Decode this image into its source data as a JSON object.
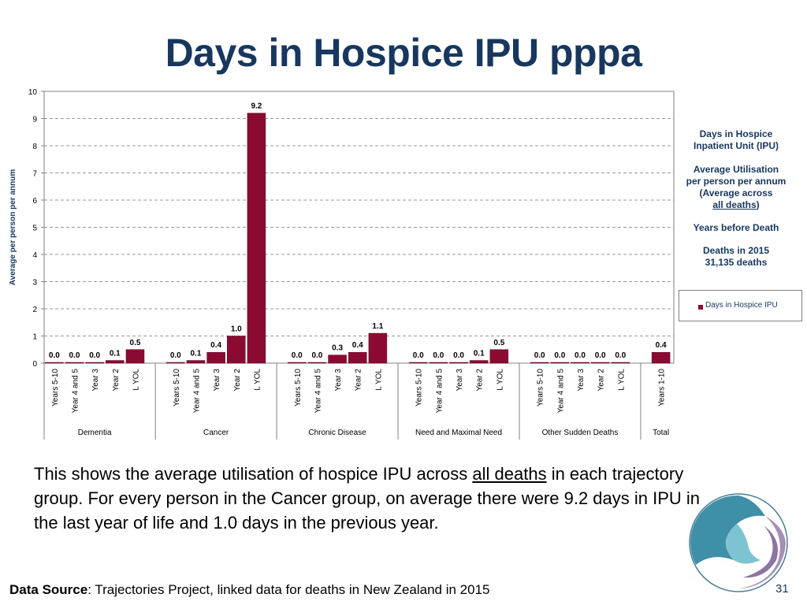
{
  "slide": {
    "title": "Days in Hospice IPU pppa",
    "description_pre": "This shows the average utilisation of hospice IPU across ",
    "description_underline": "all deaths",
    "description_post": " in each trajectory group. For every person in the Cancer group, on average there were 9.2 days in IPU in the last year of life and 1.0 days in the previous year.",
    "footer_label": "Data Source",
    "footer_text": ": Trajectories Project, linked data for deaths in New Zealand in 2015",
    "page_number": "31"
  },
  "side_notes": {
    "heading_line1": "Days in Hospice",
    "heading_line2": "Inpatient Unit (IPU)",
    "avg_line1": "Average Utilisation",
    "avg_line2": "per person per annum",
    "avg_line3": "(Average across",
    "avg_line4": "all deaths",
    "avg_line4_suffix": ")",
    "years": "Years before Death",
    "deaths_line1": "Deaths in 2015",
    "deaths_line2": "31,135 deaths"
  },
  "legend": {
    "label": "Days in Hospice IPU"
  },
  "colors": {
    "bar": "#8b0a32",
    "title": "#17375e",
    "grid": "#999999",
    "logo_teal": "#3f8fa8",
    "logo_purple": "#a58fb6"
  },
  "chart_data": {
    "type": "bar",
    "title": "",
    "xlabel": "",
    "ylabel": "Average per person per annum",
    "ylim": [
      0,
      10
    ],
    "yticks": [
      0,
      1,
      2,
      3,
      4,
      5,
      6,
      7,
      8,
      9,
      10
    ],
    "grid": true,
    "groups": [
      {
        "name": "Dementia",
        "categories": [
          "Years 5-10",
          "Year 4 and 5",
          "Year 3",
          "Year 2",
          "L YOL"
        ],
        "values": [
          0.0,
          0.0,
          0.0,
          0.1,
          0.5
        ],
        "labels": [
          "0.0",
          "0.0",
          "0.0",
          "0.1",
          "0.5"
        ]
      },
      {
        "name": "Cancer",
        "categories": [
          "Years 5-10",
          "Year 4 and 5",
          "Year 3",
          "Year 2",
          "L YOL"
        ],
        "values": [
          0.0,
          0.1,
          0.4,
          1.0,
          9.2
        ],
        "labels": [
          "0.0",
          "0.1",
          "0.4",
          "1.0",
          "9.2"
        ]
      },
      {
        "name": "Chronic Disease",
        "categories": [
          "Years 5-10",
          "Year 4 and 5",
          "Year 3",
          "Year 2",
          "L YOL"
        ],
        "values": [
          0.0,
          0.0,
          0.3,
          0.4,
          1.1
        ],
        "labels": [
          "0.0",
          "0.0",
          "0.3",
          "0.4",
          "1.1"
        ]
      },
      {
        "name": "Need and Maximal Need",
        "categories": [
          "Years 5-10",
          "Year 4 and 5",
          "Year 3",
          "Year 2",
          "L YOL"
        ],
        "values": [
          0.0,
          0.0,
          0.0,
          0.1,
          0.5
        ],
        "labels": [
          "0.0",
          "0.0",
          "0.0",
          "0.1",
          "0.5"
        ]
      },
      {
        "name": "Other Sudden Deaths",
        "categories": [
          "Years 5-10",
          "Year 4 and 5",
          "Year 3",
          "Year 2",
          "L YOL"
        ],
        "values": [
          0.0,
          0.0,
          0.0,
          0.0,
          0.0
        ],
        "labels": [
          "0.0",
          "0.0",
          "0.0",
          "0.0",
          "0.0"
        ]
      },
      {
        "name": "Total",
        "categories": [
          "Years 1-10"
        ],
        "values": [
          0.4
        ],
        "labels": [
          "0.4"
        ]
      }
    ]
  }
}
